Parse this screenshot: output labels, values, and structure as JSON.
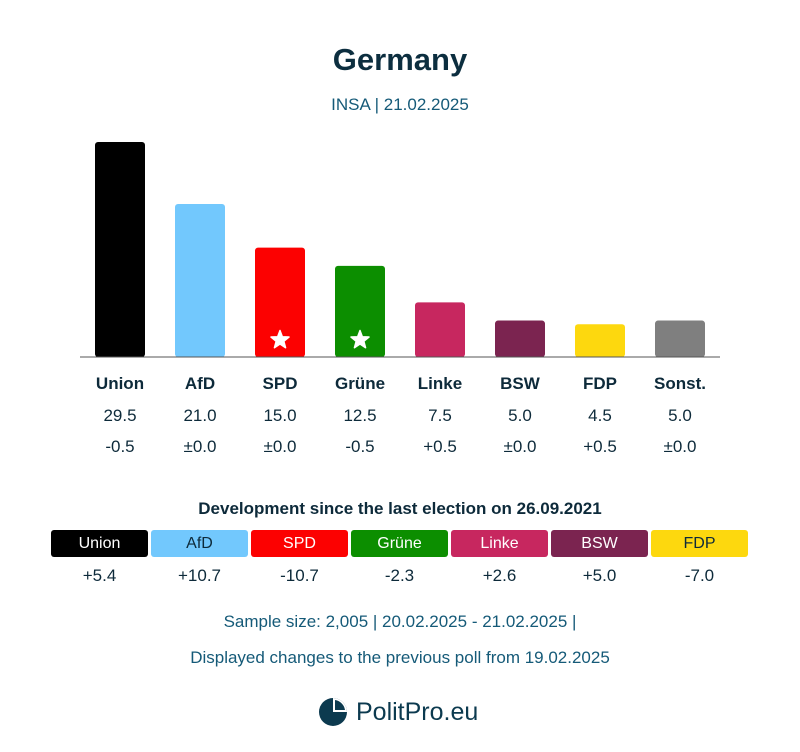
{
  "header": {
    "title": "Germany",
    "subtitle": "INSA | 21.02.2025"
  },
  "chart_data": {
    "type": "bar",
    "title": "Germany",
    "subtitle": "INSA | 21.02.2025",
    "categories": [
      "Union",
      "AfD",
      "SPD",
      "Grüne",
      "Linke",
      "BSW",
      "FDP",
      "Sonst."
    ],
    "values": [
      29.5,
      21.0,
      15.0,
      12.5,
      7.5,
      5.0,
      4.5,
      5.0
    ],
    "value_labels": [
      "29.5",
      "21.0",
      "15.0",
      "12.5",
      "7.5",
      "5.0",
      "4.5",
      "5.0"
    ],
    "changes": [
      "-0.5",
      "±0.0",
      "±0.0",
      "-0.5",
      "+0.5",
      "±0.0",
      "+0.5",
      "±0.0"
    ],
    "colors": [
      "#000000",
      "#72c8fd",
      "#fc0101",
      "#0c8e00",
      "#c7275f",
      "#7b2450",
      "#fdd80e",
      "#7f7f7f"
    ],
    "government_parties": [
      "SPD",
      "Grüne"
    ],
    "ylim": [
      0,
      29.5
    ],
    "grid": false,
    "legend": "none"
  },
  "development": {
    "title": "Development since the last election on 26.09.2021",
    "items": [
      {
        "name": "Union",
        "change": "+5.4",
        "color": "#000000",
        "text_color": "#ffffff"
      },
      {
        "name": "AfD",
        "change": "+10.7",
        "color": "#72c8fd",
        "text_color": "#0d2a3a"
      },
      {
        "name": "SPD",
        "change": "-10.7",
        "color": "#fc0101",
        "text_color": "#ffffff"
      },
      {
        "name": "Grüne",
        "change": "-2.3",
        "color": "#0c8e00",
        "text_color": "#ffffff"
      },
      {
        "name": "Linke",
        "change": "+2.6",
        "color": "#c7275f",
        "text_color": "#ffffff"
      },
      {
        "name": "BSW",
        "change": "+5.0",
        "color": "#7b2450",
        "text_color": "#ffffff"
      },
      {
        "name": "FDP",
        "change": "-7.0",
        "color": "#fdd80e",
        "text_color": "#0d2a3a"
      }
    ]
  },
  "footer": {
    "sample": "Sample size: 2,005 | 20.02.2025 - 21.02.2025 |",
    "changes_note": "Displayed changes to the previous poll from 19.02.2025",
    "brand": "PolitPro.eu"
  },
  "icons": {
    "government_marker": "star-icon",
    "logo": "politpro-logo-icon"
  }
}
